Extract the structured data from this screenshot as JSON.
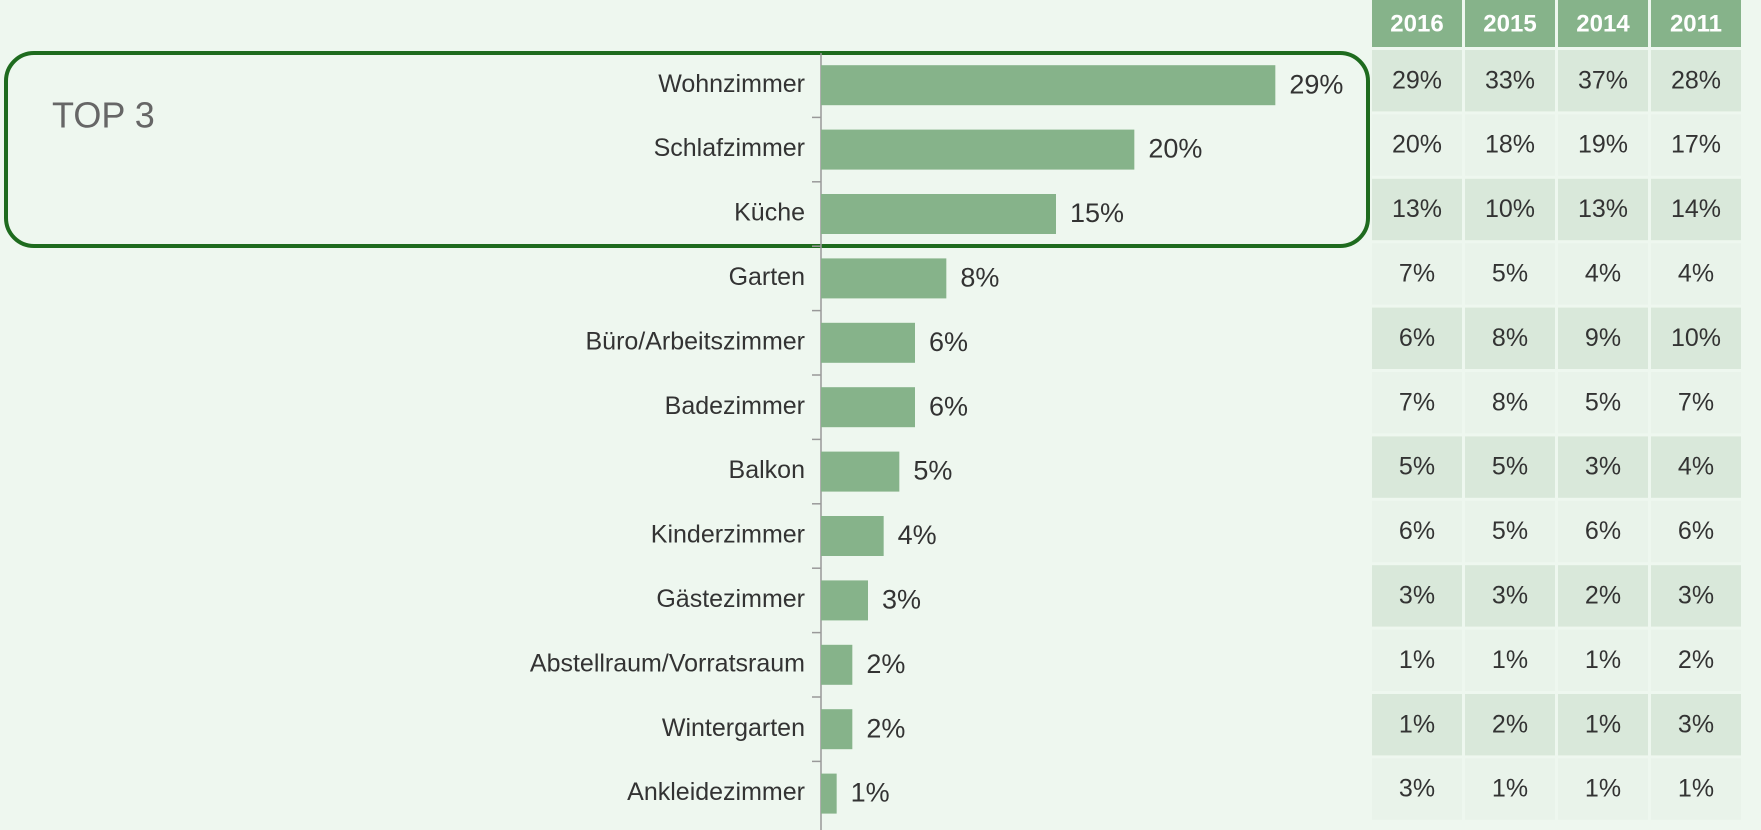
{
  "chart_data": {
    "type": "bar",
    "orientation": "horizontal",
    "annotation": "TOP 3",
    "categories": [
      "Wohnzimmer",
      "Schlafzimmer",
      "Küche",
      "Garten",
      "Büro/Arbeitszimmer",
      "Badezimmer",
      "Balkon",
      "Kinderzimmer",
      "Gästezimmer",
      "Abstellraum/Vorratsraum",
      "Wintergarten",
      "Ankleidezimmer"
    ],
    "values": [
      29,
      20,
      15,
      8,
      6,
      6,
      5,
      4,
      3,
      2,
      2,
      1
    ],
    "value_labels": [
      "29%",
      "20%",
      "15%",
      "8%",
      "6%",
      "6%",
      "5%",
      "4%",
      "3%",
      "2%",
      "2%",
      "1%"
    ],
    "color": "#86b38a",
    "xlim": [
      0,
      30
    ]
  },
  "table": {
    "columns": [
      "2016",
      "2015",
      "2014",
      "2011"
    ],
    "rows": [
      [
        "29%",
        "33%",
        "37%",
        "28%"
      ],
      [
        "20%",
        "18%",
        "19%",
        "17%"
      ],
      [
        "13%",
        "10%",
        "13%",
        "14%"
      ],
      [
        "7%",
        "5%",
        "4%",
        "4%"
      ],
      [
        "6%",
        "8%",
        "9%",
        "10%"
      ],
      [
        "7%",
        "8%",
        "5%",
        "7%"
      ],
      [
        "5%",
        "5%",
        "3%",
        "4%"
      ],
      [
        "6%",
        "5%",
        "6%",
        "6%"
      ],
      [
        "3%",
        "3%",
        "2%",
        "3%"
      ],
      [
        "1%",
        "1%",
        "1%",
        "2%"
      ],
      [
        "1%",
        "2%",
        "1%",
        "3%"
      ],
      [
        "3%",
        "1%",
        "1%",
        "1%"
      ]
    ]
  }
}
